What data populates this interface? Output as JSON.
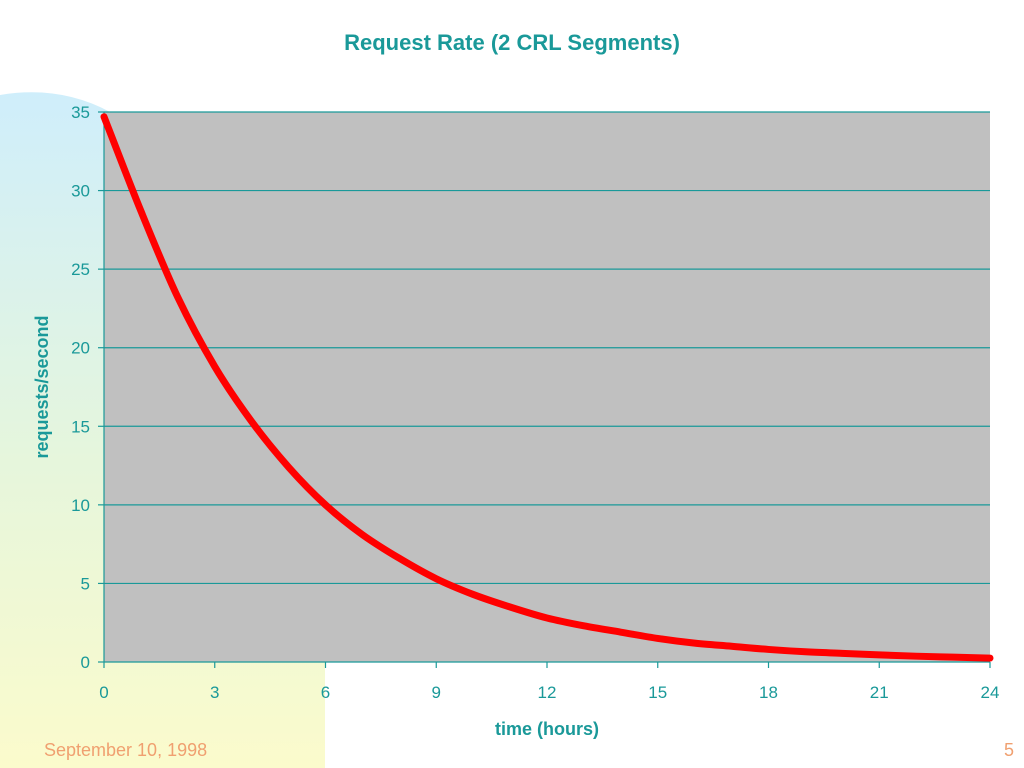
{
  "slide": {
    "footer_date": "September 10, 1998",
    "page_number": "5"
  },
  "colors": {
    "accent_text": "#1a9999",
    "plot_background": "#c0c0c0",
    "line": "#ff0000",
    "grid": "#1a9999",
    "footer_text": "#f0a070"
  },
  "chart_data": {
    "type": "line",
    "title": "Request Rate (2 CRL Segments)",
    "xlabel": "time (hours)",
    "ylabel": "requests/second",
    "xlim": [
      0,
      24
    ],
    "ylim": [
      0,
      35
    ],
    "x_ticks": [
      0,
      3,
      6,
      9,
      12,
      15,
      18,
      21,
      24
    ],
    "y_ticks": [
      0,
      5,
      10,
      15,
      20,
      25,
      30,
      35
    ],
    "grid": true,
    "legend": "none",
    "series": [
      {
        "x": [
          0,
          1,
          2,
          3,
          4,
          5,
          6,
          7,
          8,
          9,
          10,
          11,
          12,
          13,
          14,
          15,
          16,
          17,
          18,
          19,
          20,
          21,
          22,
          23,
          24
        ],
        "values": [
          34.7,
          28.7,
          23.2,
          18.8,
          15.3,
          12.4,
          10.0,
          8.1,
          6.6,
          5.3,
          4.3,
          3.5,
          2.8,
          2.3,
          1.9,
          1.5,
          1.2,
          1.0,
          0.8,
          0.65,
          0.55,
          0.45,
          0.37,
          0.31,
          0.25
        ]
      }
    ]
  }
}
